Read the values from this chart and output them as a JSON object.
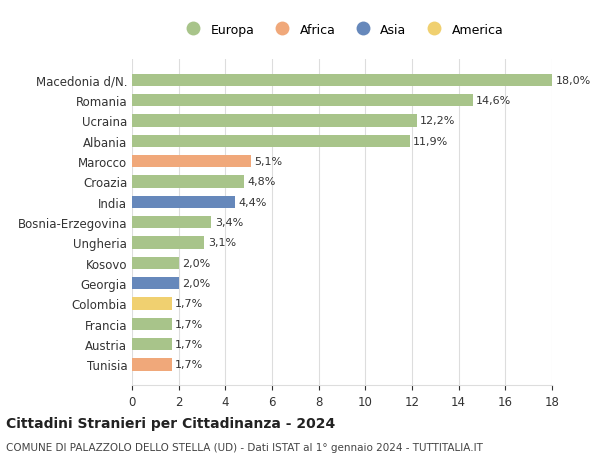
{
  "countries": [
    "Macedonia d/N.",
    "Romania",
    "Ucraina",
    "Albania",
    "Marocco",
    "Croazia",
    "India",
    "Bosnia-Erzegovina",
    "Ungheria",
    "Kosovo",
    "Georgia",
    "Colombia",
    "Francia",
    "Austria",
    "Tunisia"
  ],
  "values": [
    18.0,
    14.6,
    12.2,
    11.9,
    5.1,
    4.8,
    4.4,
    3.4,
    3.1,
    2.0,
    2.0,
    1.7,
    1.7,
    1.7,
    1.7
  ],
  "labels": [
    "18,0%",
    "14,6%",
    "12,2%",
    "11,9%",
    "5,1%",
    "4,8%",
    "4,4%",
    "3,4%",
    "3,1%",
    "2,0%",
    "2,0%",
    "1,7%",
    "1,7%",
    "1,7%",
    "1,7%"
  ],
  "continents": [
    "Europa",
    "Europa",
    "Europa",
    "Europa",
    "Africa",
    "Europa",
    "Asia",
    "Europa",
    "Europa",
    "Europa",
    "Asia",
    "America",
    "Europa",
    "Europa",
    "Africa"
  ],
  "continent_colors": {
    "Europa": "#a8c48a",
    "Africa": "#f0a87a",
    "Asia": "#6688bb",
    "America": "#f0d070"
  },
  "legend_order": [
    "Europa",
    "Africa",
    "Asia",
    "America"
  ],
  "title": "Cittadini Stranieri per Cittadinanza - 2024",
  "subtitle": "COMUNE DI PALAZZOLO DELLO STELLA (UD) - Dati ISTAT al 1° gennaio 2024 - TUTTITALIA.IT",
  "xlim": [
    0,
    18
  ],
  "xticks": [
    0,
    2,
    4,
    6,
    8,
    10,
    12,
    14,
    16,
    18
  ],
  "bg_color": "#ffffff",
  "grid_color": "#dddddd",
  "bar_height": 0.6
}
